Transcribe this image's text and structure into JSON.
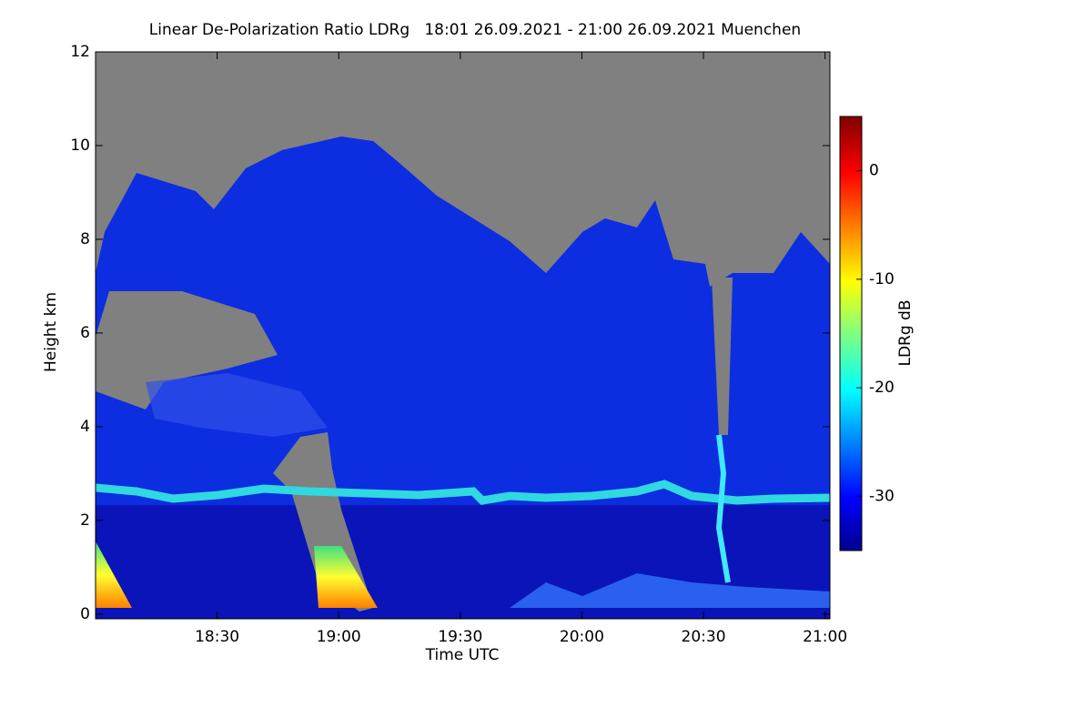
{
  "chart_data": {
    "type": "heatmap",
    "title": "Linear De-Polarization Ratio LDRg   18:01 26.09.2021 - 21:00 26.09.2021 Muenchen",
    "xlabel": "Time UTC",
    "ylabel": "Height km",
    "xlim": [
      18.0,
      21.02
    ],
    "ylim": [
      -0.1,
      12
    ],
    "xticks": [
      {
        "value": 18.5,
        "label": "18:30"
      },
      {
        "value": 19.0,
        "label": "19:00"
      },
      {
        "value": 19.5,
        "label": "19:30"
      },
      {
        "value": 20.0,
        "label": "20:00"
      },
      {
        "value": 20.5,
        "label": "20:30"
      },
      {
        "value": 21.0,
        "label": "21:00"
      }
    ],
    "yticks": [
      0,
      2,
      4,
      6,
      8,
      10,
      12
    ],
    "colorbar": {
      "label": "LDRg dB",
      "lim": [
        -35,
        5
      ],
      "ticks": [
        0,
        -10,
        -20,
        -30
      ],
      "colormap": "jet"
    }
  }
}
